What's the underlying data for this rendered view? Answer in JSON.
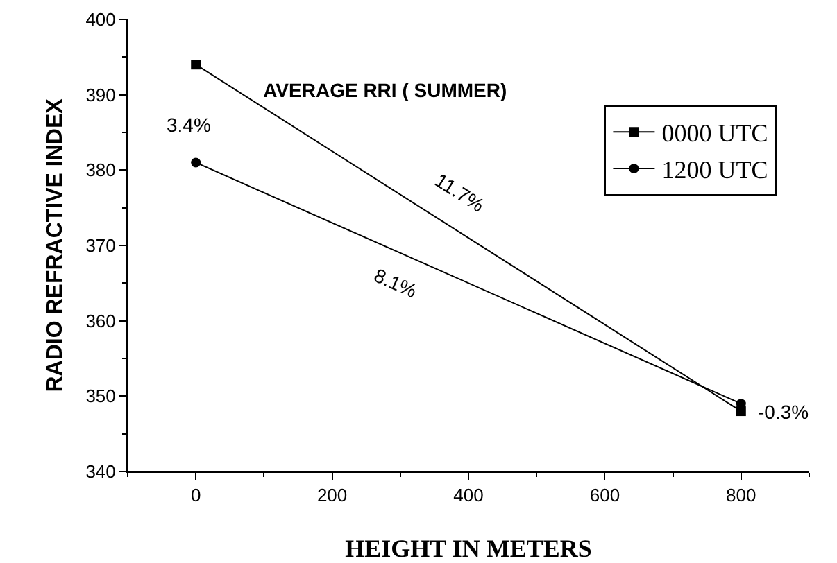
{
  "chart_data": {
    "type": "line",
    "title": "AVERAGE RRI ( SUMMER)",
    "xlabel": "HEIGHT IN METERS",
    "ylabel": "RADIO REFRACTIVE INDEX",
    "x": [
      0,
      800
    ],
    "series": [
      {
        "name": "0000 UTC",
        "color": "#000000",
        "values": [
          394,
          348
        ],
        "marker": "square"
      },
      {
        "name": "1200 UTC",
        "color": "#000000",
        "values": [
          381,
          349
        ],
        "marker": "circle"
      }
    ],
    "xlim": [
      -100,
      900
    ],
    "xticks": [
      0,
      200,
      400,
      600,
      800
    ],
    "ylim": [
      340,
      400
    ],
    "yticks": [
      340,
      350,
      360,
      370,
      380,
      390,
      400
    ],
    "annotations": [
      "3.4%",
      "11.7%",
      "8.1%",
      "-0.3%"
    ],
    "grid": false,
    "legend": "top right",
    "line_style": "solid"
  }
}
